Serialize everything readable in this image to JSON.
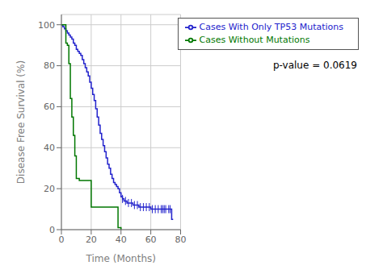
{
  "chart_data": {
    "type": "step",
    "title": "",
    "xlabel": "Time (Months)",
    "ylabel": "Disease Free Survival (%)",
    "xlim": [
      0,
      80
    ],
    "ylim": [
      0,
      105
    ],
    "xticks": [
      0,
      20,
      40,
      60,
      80
    ],
    "yticks": [
      0,
      20,
      40,
      60,
      80,
      100
    ],
    "grid": true,
    "legend": "upper right",
    "annotations": [
      {
        "text": "p-value = 0.0619"
      }
    ],
    "series": [
      {
        "name": "Cases With Only TP53 Mutations",
        "color": "#2222cc",
        "x": [
          0,
          1,
          2,
          3,
          4,
          5,
          6,
          7,
          8,
          9,
          10,
          11,
          12,
          13,
          14,
          15,
          16,
          17,
          18,
          19,
          20,
          21,
          22,
          23,
          24,
          25,
          26,
          27,
          28,
          29,
          30,
          31,
          32,
          33,
          34,
          35,
          36,
          37,
          38,
          39,
          40,
          41,
          42,
          44,
          46,
          48,
          50,
          52,
          54,
          56,
          58,
          60,
          62,
          64,
          65,
          70,
          72,
          74,
          75
        ],
        "values": [
          100,
          99,
          98,
          97,
          96,
          95,
          94,
          93,
          91,
          90,
          88,
          87,
          86,
          85,
          83,
          81,
          79,
          77,
          75,
          72,
          69,
          66,
          63,
          59,
          55,
          51,
          47,
          44,
          41,
          38,
          35,
          32,
          30,
          27,
          25,
          23,
          22,
          21,
          20,
          18,
          16,
          15,
          14,
          13,
          13,
          12,
          12,
          11,
          11,
          11,
          11,
          10,
          10,
          10,
          10,
          10,
          10,
          5,
          5
        ],
        "censored": {
          "x": [
            41,
            43,
            45,
            47,
            49,
            51,
            53,
            55,
            57,
            59,
            61,
            63,
            65,
            67,
            68,
            69,
            70,
            72,
            73
          ],
          "values": [
            15,
            14,
            13,
            13,
            12,
            12,
            11,
            11,
            11,
            11,
            10,
            10,
            10,
            10,
            10,
            10,
            10,
            10,
            10
          ]
        }
      },
      {
        "name": "Cases Without Mutations",
        "color": "#007700",
        "x": [
          0,
          2,
          3,
          4,
          5,
          6,
          7,
          8,
          9,
          10,
          12,
          14,
          16,
          18,
          20,
          22,
          36,
          38,
          40
        ],
        "values": [
          100,
          100,
          91,
          90,
          81,
          64,
          55,
          46,
          36,
          25,
          24,
          24,
          24,
          24,
          11,
          11,
          11,
          1,
          0
        ]
      }
    ]
  }
}
